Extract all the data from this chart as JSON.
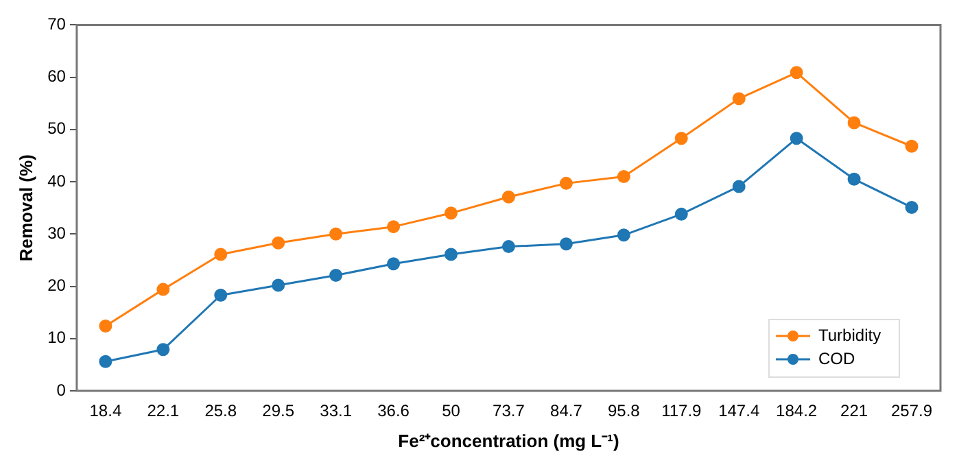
{
  "chart_data": {
    "type": "line",
    "xlabel": "Fe²⁺concentration (mg L⁻¹)",
    "ylabel": "Removal (%)",
    "categories": [
      "18.4",
      "22.1",
      "25.8",
      "29.5",
      "33.1",
      "36.6",
      "50",
      "73.7",
      "84.7",
      "95.8",
      "117.9",
      "147.4",
      "184.2",
      "221",
      "257.9"
    ],
    "series": [
      {
        "name": "Turbidity",
        "color": "#ff7f0e",
        "values": [
          12.4,
          19.4,
          26.1,
          28.3,
          30.0,
          31.4,
          34.0,
          37.1,
          39.7,
          41.0,
          48.3,
          55.9,
          60.9,
          51.3,
          46.8
        ]
      },
      {
        "name": "COD",
        "color": "#1f77b4",
        "values": [
          5.6,
          7.9,
          18.3,
          20.2,
          22.1,
          24.3,
          26.1,
          27.6,
          28.1,
          29.8,
          33.8,
          39.1,
          48.3,
          40.5,
          35.1
        ]
      }
    ],
    "ylim": [
      0,
      70
    ],
    "yticks": [
      0,
      10,
      20,
      30,
      40,
      50,
      60,
      70
    ],
    "grid": false,
    "legend": "bottom right",
    "marker": "circle",
    "line_style": "solid"
  }
}
